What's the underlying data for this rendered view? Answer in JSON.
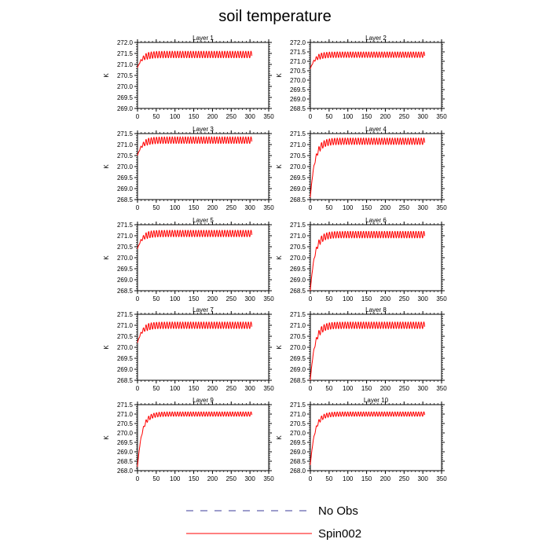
{
  "figure": {
    "title": "soil temperature",
    "legend": [
      {
        "label": "No Obs",
        "color": "#3b3b9a",
        "style": "dashed"
      },
      {
        "label": "Spin002",
        "color": "#ff0000",
        "style": "solid"
      }
    ]
  },
  "chart_data": [
    {
      "type": "line",
      "title": "Layer 1",
      "ylabel": "K",
      "xlim": [
        0,
        350
      ],
      "ylim": [
        269.0,
        272.0
      ],
      "xticks": [
        0,
        50,
        100,
        150,
        200,
        250,
        300,
        350
      ],
      "yticks": [
        269.0,
        269.5,
        270.0,
        270.5,
        271.0,
        271.5,
        272.0
      ],
      "series": [
        {
          "name": "Spin002",
          "color": "#ff0000",
          "x_range": [
            0,
            305
          ],
          "start": 270.85,
          "mean": 271.45,
          "amplitude": 0.15,
          "period": 7
        }
      ]
    },
    {
      "type": "line",
      "title": "Layer 2",
      "ylabel": "K",
      "xlim": [
        0,
        350
      ],
      "ylim": [
        268.5,
        272.0
      ],
      "xticks": [
        0,
        50,
        100,
        150,
        200,
        250,
        300,
        350
      ],
      "yticks": [
        268.5,
        269.0,
        269.5,
        270.0,
        270.5,
        271.0,
        271.5,
        272.0
      ],
      "series": [
        {
          "name": "Spin002",
          "color": "#ff0000",
          "x_range": [
            0,
            305
          ],
          "start": 270.6,
          "mean": 271.35,
          "amplitude": 0.15,
          "period": 7
        }
      ]
    },
    {
      "type": "line",
      "title": "Layer 3",
      "ylabel": "K",
      "xlim": [
        0,
        350
      ],
      "ylim": [
        268.5,
        271.5
      ],
      "xticks": [
        0,
        50,
        100,
        150,
        200,
        250,
        300,
        350
      ],
      "yticks": [
        268.5,
        269.0,
        269.5,
        270.0,
        270.5,
        271.0,
        271.5
      ],
      "series": [
        {
          "name": "Spin002",
          "color": "#ff0000",
          "x_range": [
            0,
            305
          ],
          "start": 270.5,
          "mean": 271.2,
          "amplitude": 0.15,
          "period": 7
        }
      ]
    },
    {
      "type": "line",
      "title": "Layer 4",
      "ylabel": "K",
      "xlim": [
        0,
        350
      ],
      "ylim": [
        268.5,
        271.5
      ],
      "xticks": [
        0,
        50,
        100,
        150,
        200,
        250,
        300,
        350
      ],
      "yticks": [
        268.5,
        269.0,
        269.5,
        270.0,
        270.5,
        271.0,
        271.5
      ],
      "series": [
        {
          "name": "Spin002",
          "color": "#ff0000",
          "x_range": [
            0,
            305
          ],
          "start": 268.6,
          "mean": 271.15,
          "amplitude": 0.15,
          "period": 7
        }
      ]
    },
    {
      "type": "line",
      "title": "Layer 5",
      "ylabel": "K",
      "xlim": [
        0,
        350
      ],
      "ylim": [
        268.5,
        271.5
      ],
      "xticks": [
        0,
        50,
        100,
        150,
        200,
        250,
        300,
        350
      ],
      "yticks": [
        268.5,
        269.0,
        269.5,
        270.0,
        270.5,
        271.0,
        271.5
      ],
      "series": [
        {
          "name": "Spin002",
          "color": "#ff0000",
          "x_range": [
            0,
            305
          ],
          "start": 270.4,
          "mean": 271.1,
          "amplitude": 0.15,
          "period": 7
        }
      ]
    },
    {
      "type": "line",
      "title": "Layer 6",
      "ylabel": "K",
      "xlim": [
        0,
        350
      ],
      "ylim": [
        268.5,
        271.5
      ],
      "xticks": [
        0,
        50,
        100,
        150,
        200,
        250,
        300,
        350
      ],
      "yticks": [
        268.5,
        269.0,
        269.5,
        270.0,
        270.5,
        271.0,
        271.5
      ],
      "series": [
        {
          "name": "Spin002",
          "color": "#ff0000",
          "x_range": [
            0,
            305
          ],
          "start": 268.5,
          "mean": 271.05,
          "amplitude": 0.15,
          "period": 7
        }
      ]
    },
    {
      "type": "line",
      "title": "Layer 7",
      "ylabel": "K",
      "xlim": [
        0,
        350
      ],
      "ylim": [
        268.5,
        271.5
      ],
      "xticks": [
        0,
        50,
        100,
        150,
        200,
        250,
        300,
        350
      ],
      "yticks": [
        268.5,
        269.0,
        269.5,
        270.0,
        270.5,
        271.0,
        271.5
      ],
      "series": [
        {
          "name": "Spin002",
          "color": "#ff0000",
          "x_range": [
            0,
            305
          ],
          "start": 270.2,
          "mean": 271.0,
          "amplitude": 0.15,
          "period": 7
        }
      ]
    },
    {
      "type": "line",
      "title": "Layer 8",
      "ylabel": "K",
      "xlim": [
        0,
        350
      ],
      "ylim": [
        268.5,
        271.5
      ],
      "xticks": [
        0,
        50,
        100,
        150,
        200,
        250,
        300,
        350
      ],
      "yticks": [
        268.5,
        269.0,
        269.5,
        270.0,
        270.5,
        271.0,
        271.5
      ],
      "series": [
        {
          "name": "Spin002",
          "color": "#ff0000",
          "x_range": [
            0,
            305
          ],
          "start": 268.5,
          "mean": 271.0,
          "amplitude": 0.15,
          "period": 7
        }
      ]
    },
    {
      "type": "line",
      "title": "Layer 9",
      "ylabel": "K",
      "xlim": [
        0,
        350
      ],
      "ylim": [
        268.0,
        271.5
      ],
      "xticks": [
        0,
        50,
        100,
        150,
        200,
        250,
        300,
        350
      ],
      "yticks": [
        268.0,
        268.5,
        269.0,
        269.5,
        270.0,
        270.5,
        271.0,
        271.5
      ],
      "series": [
        {
          "name": "Spin002",
          "color": "#ff0000",
          "x_range": [
            0,
            305
          ],
          "start": 268.2,
          "mean": 271.0,
          "amplitude": 0.12,
          "period": 7
        }
      ]
    },
    {
      "type": "line",
      "title": "Layer 10",
      "ylabel": "K",
      "xlim": [
        0,
        350
      ],
      "ylim": [
        268.0,
        271.5
      ],
      "xticks": [
        0,
        50,
        100,
        150,
        200,
        250,
        300,
        350
      ],
      "yticks": [
        268.0,
        268.5,
        269.0,
        269.5,
        270.0,
        270.5,
        271.0,
        271.5
      ],
      "series": [
        {
          "name": "Spin002",
          "color": "#ff0000",
          "x_range": [
            0,
            305
          ],
          "start": 268.3,
          "mean": 271.0,
          "amplitude": 0.12,
          "period": 7
        }
      ]
    }
  ]
}
